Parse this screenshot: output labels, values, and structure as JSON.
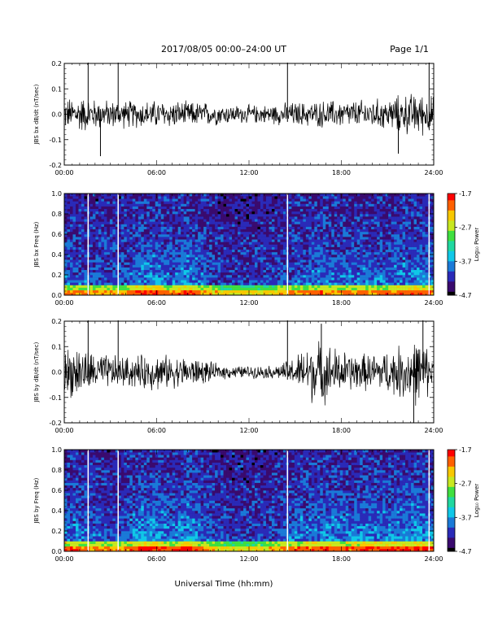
{
  "header": {
    "title": "2017/08/05   00:00–24:00 UT",
    "page": "Page 1/1"
  },
  "x_axis_label": "Universal Time (hh:mm)",
  "colors": {
    "trace": "#000000",
    "spike_marker": "#ffffff",
    "colormap": [
      "#000000",
      "#3a0a6e",
      "#2a2ab8",
      "#1a7ad8",
      "#10c8e8",
      "#20d8a0",
      "#40e040",
      "#c8e820",
      "#f8c800",
      "#ff6000",
      "#ff0000"
    ]
  },
  "chart_data": [
    {
      "type": "line",
      "ylabel": "JBS bx dB/dt (nT/sec)",
      "x_ticks": [
        "00:00",
        "06:00",
        "12:00",
        "18:00",
        "24:00"
      ],
      "xlim": [
        0,
        24
      ],
      "ylim": [
        -0.2,
        0.2
      ],
      "y_ticks": [
        "-0.2",
        "-0.1",
        "0.0",
        "0.1",
        "0.2"
      ],
      "y_tick_values": [
        -0.2,
        -0.1,
        0.0,
        0.1,
        0.2
      ],
      "x_hours": [
        0,
        1,
        2,
        3,
        4,
        5,
        6,
        7,
        8,
        9,
        10,
        11,
        12,
        13,
        14,
        15,
        16,
        17,
        18,
        19,
        20,
        21,
        22,
        23,
        24
      ],
      "envelope": [
        0.05,
        0.06,
        0.05,
        0.045,
        0.045,
        0.045,
        0.045,
        0.045,
        0.04,
        0.04,
        0.035,
        0.03,
        0.03,
        0.03,
        0.035,
        0.04,
        0.04,
        0.045,
        0.045,
        0.045,
        0.05,
        0.05,
        0.065,
        0.07,
        0.06
      ],
      "spikes": [
        {
          "hour": 1.55,
          "high": 0.21,
          "low": -0.02
        },
        {
          "hour": 2.35,
          "high": 0.02,
          "low": -0.165
        },
        {
          "hour": 3.5,
          "high": 0.21,
          "low": -0.02
        },
        {
          "hour": 14.5,
          "high": 0.21,
          "low": -0.03
        },
        {
          "hour": 21.7,
          "high": 0.02,
          "low": -0.155
        },
        {
          "hour": 23.7,
          "high": 0.21,
          "low": -0.03
        }
      ]
    },
    {
      "type": "heatmap",
      "ylabel": "JBS bx Freq (Hz)",
      "x_ticks": [
        "00:00",
        "06:00",
        "12:00",
        "18:00",
        "24:00"
      ],
      "xlim": [
        0,
        24
      ],
      "ylim": [
        0.0,
        1.0
      ],
      "y_ticks": [
        "0.0",
        "0.2",
        "0.4",
        "0.6",
        "0.8",
        "1.0"
      ],
      "y_tick_values": [
        0.0,
        0.2,
        0.4,
        0.6,
        0.8,
        1.0
      ],
      "colorbar": {
        "label": "Log₁₀ Power",
        "ticks": [
          "-1.7",
          "-2.7",
          "-3.7",
          "-4.7"
        ],
        "tick_values": [
          -1.7,
          -2.7,
          -3.7,
          -4.7
        ],
        "range": [
          -4.7,
          -1.7
        ]
      },
      "gap_lines_hours": [
        1.55,
        3.5,
        14.5,
        23.7
      ],
      "activity_profile": [
        0.55,
        0.5,
        0.45,
        0.4,
        0.45,
        0.7,
        0.75,
        0.5,
        0.8,
        0.55,
        0.35,
        0.3,
        0.28,
        0.3,
        0.4,
        0.5,
        0.55,
        0.6,
        0.55,
        0.55,
        0.6,
        0.6,
        0.65,
        0.7,
        0.6
      ]
    },
    {
      "type": "line",
      "ylabel": "JBS by dB/dt (nT/sec)",
      "x_ticks": [
        "00:00",
        "06:00",
        "12:00",
        "18:00",
        "24:00"
      ],
      "xlim": [
        0,
        24
      ],
      "ylim": [
        -0.2,
        0.2
      ],
      "y_ticks": [
        "-0.2",
        "-0.1",
        "0.0",
        "0.1",
        "0.2"
      ],
      "y_tick_values": [
        -0.2,
        -0.1,
        0.0,
        0.1,
        0.2
      ],
      "x_hours": [
        0,
        1,
        2,
        3,
        4,
        5,
        6,
        7,
        8,
        9,
        10,
        11,
        12,
        13,
        14,
        15,
        16,
        17,
        18,
        19,
        20,
        21,
        22,
        23,
        24
      ],
      "envelope": [
        0.08,
        0.085,
        0.06,
        0.055,
        0.05,
        0.055,
        0.06,
        0.05,
        0.05,
        0.04,
        0.025,
        0.02,
        0.02,
        0.02,
        0.025,
        0.05,
        0.1,
        0.095,
        0.07,
        0.06,
        0.06,
        0.07,
        0.09,
        0.11,
        0.06
      ],
      "spikes": [
        {
          "hour": 1.55,
          "high": 0.21,
          "low": -0.02
        },
        {
          "hour": 3.5,
          "high": 0.21,
          "low": -0.02
        },
        {
          "hour": 14.5,
          "high": 0.21,
          "low": -0.03
        },
        {
          "hour": 16.7,
          "high": 0.19,
          "low": -0.05
        },
        {
          "hour": 22.7,
          "high": 0.02,
          "low": -0.2
        },
        {
          "hour": 23.3,
          "high": 0.21,
          "low": -0.03
        }
      ]
    },
    {
      "type": "heatmap",
      "ylabel": "JBS by Freq (Hz)",
      "x_ticks": [
        "00:00",
        "06:00",
        "12:00",
        "18:00",
        "24:00"
      ],
      "xlim": [
        0,
        24
      ],
      "ylim": [
        0.0,
        1.0
      ],
      "y_ticks": [
        "0.0",
        "0.2",
        "0.4",
        "0.6",
        "0.8",
        "1.0"
      ],
      "y_tick_values": [
        0.0,
        0.2,
        0.4,
        0.6,
        0.8,
        1.0
      ],
      "colorbar": {
        "label": "Log₁₀ Power",
        "ticks": [
          "-1.7",
          "-2.7",
          "-3.7",
          "-4.7"
        ],
        "tick_values": [
          -1.7,
          -2.7,
          -3.7,
          -4.7
        ],
        "range": [
          -4.7,
          -1.7
        ]
      },
      "gap_lines_hours": [
        1.55,
        3.5,
        14.5,
        23.7
      ],
      "activity_profile": [
        0.65,
        0.6,
        0.5,
        0.45,
        0.5,
        0.8,
        0.8,
        0.55,
        0.9,
        0.6,
        0.35,
        0.3,
        0.3,
        0.32,
        0.45,
        0.6,
        0.65,
        0.7,
        0.65,
        0.65,
        0.7,
        0.7,
        0.75,
        0.8,
        0.65
      ]
    }
  ]
}
